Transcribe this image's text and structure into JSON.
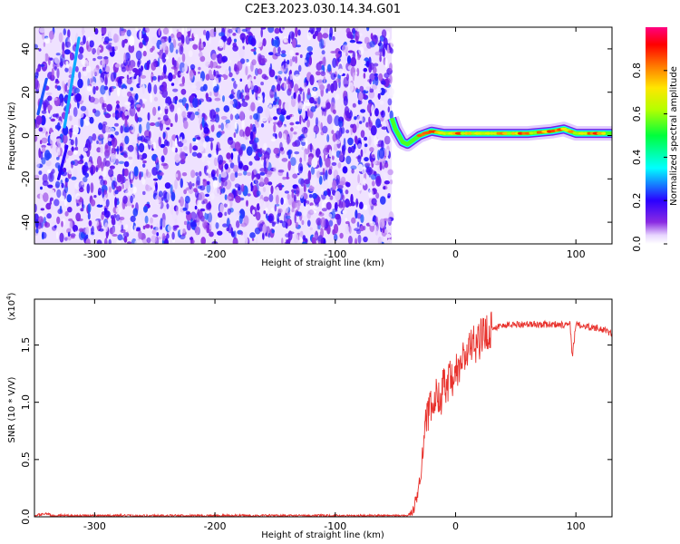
{
  "title": "C2E3.2023.030.14.34.G01",
  "colors": {
    "snr_line": "#e8322d",
    "spectrogram_noise": "#7a1fe6",
    "frame": "#000000"
  },
  "colorbar": {
    "label": "Normalized spectral amplitude",
    "ticks": [
      "0.0",
      "0.2",
      "0.4",
      "0.6",
      "0.8"
    ],
    "tick_values": [
      0.0,
      0.2,
      0.4,
      0.6,
      0.8
    ],
    "range": [
      0,
      1
    ],
    "colormap": "rainbow (white-purple-blue-cyan-green-yellow-red-magenta)"
  },
  "chart_data": [
    {
      "type": "heatmap",
      "name": "spectrogram",
      "xlabel": "Height of straight line (km)",
      "ylabel": "Frequency (Hz)",
      "xlim": [
        -350,
        130
      ],
      "ylim": [
        -50,
        50
      ],
      "x_ticks": [
        -300,
        -200,
        -100,
        0,
        100
      ],
      "x_tick_labels": [
        "-300",
        "-200",
        "-100",
        "0",
        "100"
      ],
      "y_ticks": [
        -40,
        -20,
        0,
        20,
        40
      ],
      "y_tick_labels": [
        "-40",
        "-20",
        "0",
        "20",
        "40"
      ],
      "noise_region_x": [
        -350,
        -53
      ],
      "noise_amplitude_range": [
        0.0,
        0.25
      ],
      "doppler_trace": [
        {
          "x": -53,
          "y": 8
        },
        {
          "x": -50,
          "y": 3
        },
        {
          "x": -47,
          "y": 0
        },
        {
          "x": -44,
          "y": -3
        },
        {
          "x": -40,
          "y": -4
        },
        {
          "x": -35,
          "y": -2
        },
        {
          "x": -30,
          "y": 0
        },
        {
          "x": -25,
          "y": 1
        },
        {
          "x": -20,
          "y": 2
        },
        {
          "x": -10,
          "y": 1
        },
        {
          "x": 0,
          "y": 1
        },
        {
          "x": 20,
          "y": 1
        },
        {
          "x": 40,
          "y": 1
        },
        {
          "x": 60,
          "y": 1
        },
        {
          "x": 80,
          "y": 2
        },
        {
          "x": 90,
          "y": 3
        },
        {
          "x": 100,
          "y": 1
        },
        {
          "x": 110,
          "y": 1
        },
        {
          "x": 130,
          "y": 1
        }
      ],
      "doppler_trace_peak_amplitude": 0.9,
      "interference_streaks": [
        {
          "x": [
            -347,
            -340
          ],
          "y": [
            10,
            26
          ],
          "amplitude": 0.25
        },
        {
          "x": [
            -325,
            -313
          ],
          "y": [
            4,
            45
          ],
          "amplitude": 0.3
        },
        {
          "x": [
            -330,
            -323
          ],
          "y": [
            -20,
            -5
          ],
          "amplitude": 0.2
        }
      ]
    },
    {
      "type": "line",
      "name": "snr",
      "xlabel": "Height of straight line (km)",
      "ylabel": "SNR (10 * V/V)",
      "y_scale_label": "(x10",
      "y_scale_exponent": "4",
      "y_scale_suffix": ")",
      "xlim": [
        -350,
        130
      ],
      "ylim": [
        0,
        1.9
      ],
      "x_ticks": [
        -300,
        -200,
        -100,
        0,
        100
      ],
      "x_tick_labels": [
        "-300",
        "-200",
        "-100",
        "0",
        "100"
      ],
      "y_ticks": [
        0,
        0.5,
        1.0,
        1.5
      ],
      "y_tick_labels": [
        "0.0",
        "0.5",
        "1.0",
        "1.5"
      ],
      "series": [
        {
          "x": [
            -350,
            -345,
            -340,
            -335,
            -330,
            -300,
            -250,
            -200,
            -150,
            -100,
            -60,
            -40,
            -35,
            -30,
            -27,
            -25,
            -22,
            -20,
            -18,
            -15,
            -12,
            -10,
            -7,
            -5,
            -2,
            0,
            3,
            5,
            8,
            10,
            15,
            20,
            25,
            30,
            40,
            50,
            60,
            70,
            80,
            85,
            90,
            95,
            97,
            100,
            105,
            110,
            115,
            120,
            125,
            130
          ],
          "y": [
            0.01,
            0.02,
            0.03,
            0.01,
            0.01,
            0.01,
            0.01,
            0.01,
            0.01,
            0.01,
            0.01,
            0.01,
            0.05,
            0.3,
            0.6,
            0.85,
            0.9,
            1.0,
            0.95,
            1.1,
            1.05,
            1.15,
            1.1,
            1.2,
            1.15,
            1.25,
            1.3,
            1.35,
            1.4,
            1.45,
            1.5,
            1.55,
            1.6,
            1.65,
            1.67,
            1.68,
            1.68,
            1.68,
            1.68,
            1.68,
            1.68,
            1.7,
            1.4,
            1.68,
            1.67,
            1.66,
            1.65,
            1.65,
            1.62,
            1.6
          ]
        }
      ]
    }
  ]
}
